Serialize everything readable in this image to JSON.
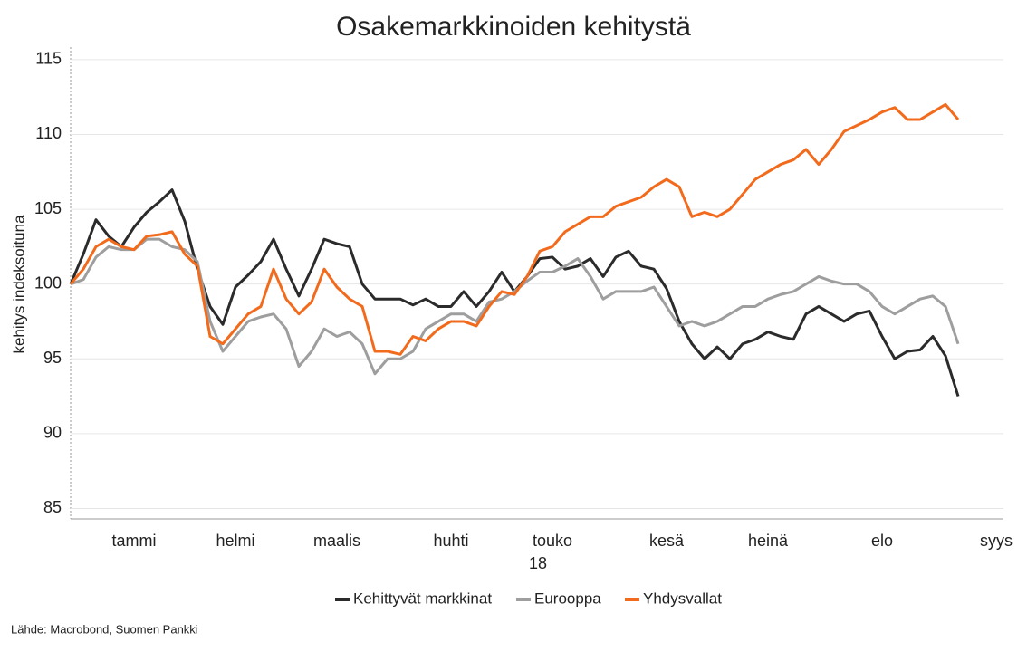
{
  "chart_data": {
    "type": "line",
    "title": "Osakemarkkinoiden kehitystä",
    "y_label": "kehitys indeksoituna",
    "x_sublabel": "18",
    "source": "Lähde: Macrobond, Suomen Pankki",
    "categories": [
      null,
      null,
      null,
      null,
      null,
      "tammi",
      null,
      null,
      null,
      null,
      null,
      null,
      null,
      "helmi",
      null,
      null,
      null,
      null,
      null,
      null,
      null,
      "maalis",
      null,
      null,
      null,
      null,
      null,
      null,
      null,
      null,
      "huhti",
      null,
      null,
      null,
      null,
      null,
      null,
      null,
      "touko",
      null,
      null,
      null,
      null,
      null,
      null,
      null,
      null,
      "kesä",
      null,
      null,
      null,
      null,
      null,
      null,
      null,
      "heinä",
      null,
      null,
      null,
      null,
      null,
      null,
      null,
      null,
      "elo",
      null,
      null,
      null,
      null,
      null,
      null,
      null,
      null,
      "syys"
    ],
    "series": [
      {
        "name": "Kehittyvät markkinat",
        "color": "#2b2b2b",
        "values": [
          100,
          102,
          104.3,
          103.2,
          102.5,
          103.8,
          104.8,
          105.5,
          106.3,
          104.2,
          101,
          98.5,
          97.3,
          99.8,
          100.6,
          101.5,
          103,
          101,
          99.2,
          101,
          103,
          102.7,
          102.5,
          100,
          99,
          99,
          99,
          98.6,
          99,
          98.5,
          98.5,
          99.5,
          98.5,
          99.5,
          100.8,
          99.5,
          100.5,
          101.7,
          101.8,
          101,
          101.2,
          101.7,
          100.5,
          101.8,
          102.2,
          101.2,
          101,
          99.7,
          97.5,
          96,
          95,
          95.8,
          95,
          96,
          96.3,
          96.8,
          96.5,
          96.3,
          98,
          98.5,
          98,
          97.5,
          98,
          98.2,
          96.5,
          95,
          95.5,
          95.6,
          96.5,
          95.2,
          92.5,
          null,
          null,
          null
        ]
      },
      {
        "name": "Eurooppa",
        "color": "#9e9e9e",
        "values": [
          100,
          100.3,
          101.8,
          102.5,
          102.3,
          102.3,
          103,
          103,
          102.5,
          102.3,
          101.5,
          97.5,
          95.5,
          96.5,
          97.5,
          97.8,
          98,
          97,
          94.5,
          95.5,
          97,
          96.5,
          96.8,
          96,
          94,
          95,
          95,
          95.5,
          97,
          97.5,
          98,
          98,
          97.5,
          98.8,
          99,
          99.5,
          100.2,
          100.8,
          100.8,
          101.2,
          101.7,
          100.5,
          99,
          99.5,
          99.5,
          99.5,
          99.8,
          98.5,
          97.2,
          97.5,
          97.2,
          97.5,
          98,
          98.5,
          98.5,
          99,
          99.3,
          99.5,
          100,
          100.5,
          100.2,
          100,
          100,
          99.5,
          98.5,
          98,
          98.5,
          99,
          99.2,
          98.5,
          96,
          null,
          null,
          null
        ]
      },
      {
        "name": "Yhdysvallat",
        "color": "#f26b1d",
        "values": [
          100,
          101,
          102.5,
          103,
          102.5,
          102.3,
          103.2,
          103.3,
          103.5,
          102,
          101.2,
          96.5,
          96,
          97,
          98,
          98.5,
          101,
          99,
          98,
          98.8,
          101,
          99.8,
          99,
          98.5,
          95.5,
          95.5,
          95.3,
          96.5,
          96.2,
          97,
          97.5,
          97.5,
          97.2,
          98.5,
          99.5,
          99.3,
          100.5,
          102.2,
          102.5,
          103.5,
          104,
          104.5,
          104.5,
          105.2,
          105.5,
          105.8,
          106.5,
          107,
          106.5,
          104.5,
          104.8,
          104.5,
          105,
          106,
          107,
          107.5,
          108,
          108.3,
          109,
          108,
          109,
          110.2,
          110.6,
          111,
          111.5,
          111.8,
          111,
          111,
          111.5,
          112,
          111,
          null,
          null,
          null
        ]
      }
    ],
    "ylim": [
      84.3,
      115.6
    ],
    "yticks": [
      85,
      90,
      95,
      100,
      105,
      110,
      115
    ],
    "grid": true,
    "legend": "bottom"
  }
}
